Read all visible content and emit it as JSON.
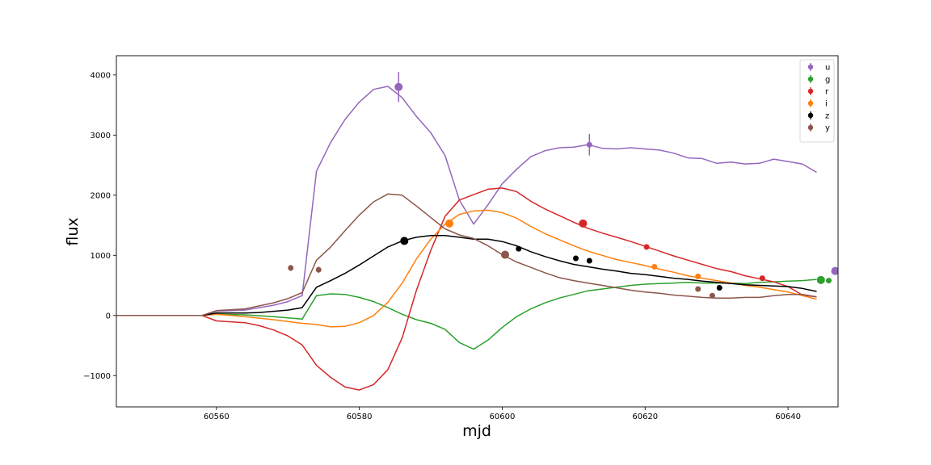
{
  "chart_data": {
    "type": "line",
    "xlabel": "mjd",
    "ylabel": "flux",
    "xlim": [
      60546,
      60647
    ],
    "ylim": [
      -1520,
      4320
    ],
    "x_ticks": [
      60560,
      60580,
      60600,
      60620,
      60640
    ],
    "x_tick_labels": [
      "60560",
      "60580",
      "60600",
      "60620",
      "60640"
    ],
    "y_ticks": [
      -1000,
      0,
      1000,
      2000,
      3000,
      4000
    ],
    "y_tick_labels": [
      "−1000",
      "0",
      "1000",
      "2000",
      "3000",
      "4000"
    ],
    "legend_position": "top-right",
    "series": [
      {
        "name": "u",
        "color": "#9467bd",
        "line": [
          [
            60546,
            0
          ],
          [
            60558,
            0
          ],
          [
            60560,
            70
          ],
          [
            60564,
            90
          ],
          [
            60568,
            170
          ],
          [
            60570,
            230
          ],
          [
            60572,
            330
          ],
          [
            60574,
            2400
          ],
          [
            60576,
            2880
          ],
          [
            60578,
            3260
          ],
          [
            60580,
            3550
          ],
          [
            60582,
            3760
          ],
          [
            60584,
            3810
          ],
          [
            60586,
            3620
          ],
          [
            60588,
            3310
          ],
          [
            60590,
            3040
          ],
          [
            60592,
            2660
          ],
          [
            60594,
            1920
          ],
          [
            60596,
            1520
          ],
          [
            60598,
            1840
          ],
          [
            60600,
            2190
          ],
          [
            60602,
            2430
          ],
          [
            60604,
            2640
          ],
          [
            60606,
            2740
          ],
          [
            60608,
            2790
          ],
          [
            60610,
            2800
          ],
          [
            60612,
            2840
          ],
          [
            60614,
            2780
          ],
          [
            60616,
            2770
          ],
          [
            60618,
            2790
          ],
          [
            60620,
            2770
          ],
          [
            60622,
            2750
          ],
          [
            60624,
            2700
          ],
          [
            60626,
            2620
          ],
          [
            60628,
            2610
          ],
          [
            60630,
            2530
          ],
          [
            60632,
            2550
          ],
          [
            60634,
            2520
          ],
          [
            60636,
            2530
          ],
          [
            60638,
            2600
          ],
          [
            60640,
            2560
          ],
          [
            60642,
            2520
          ],
          [
            60644,
            2380
          ]
        ],
        "points": [
          {
            "x": 60585.5,
            "y": 3800,
            "err": 250,
            "size": 10
          },
          {
            "x": 60612.2,
            "y": 2840,
            "err": 180,
            "size": 7
          },
          {
            "x": 60646.6,
            "y": 740,
            "err": 0,
            "size": 10
          }
        ]
      },
      {
        "name": "g",
        "color": "#2ca02c",
        "line": [
          [
            60546,
            0
          ],
          [
            60558,
            0
          ],
          [
            60560,
            20
          ],
          [
            60564,
            10
          ],
          [
            60568,
            -20
          ],
          [
            60570,
            -40
          ],
          [
            60572,
            -60
          ],
          [
            60574,
            330
          ],
          [
            60576,
            360
          ],
          [
            60578,
            350
          ],
          [
            60580,
            300
          ],
          [
            60582,
            230
          ],
          [
            60584,
            130
          ],
          [
            60586,
            20
          ],
          [
            60588,
            -70
          ],
          [
            60590,
            -130
          ],
          [
            60592,
            -230
          ],
          [
            60594,
            -450
          ],
          [
            60596,
            -560
          ],
          [
            60598,
            -410
          ],
          [
            60600,
            -200
          ],
          [
            60602,
            -20
          ],
          [
            60604,
            110
          ],
          [
            60606,
            210
          ],
          [
            60608,
            290
          ],
          [
            60610,
            350
          ],
          [
            60612,
            410
          ],
          [
            60614,
            440
          ],
          [
            60616,
            470
          ],
          [
            60618,
            500
          ],
          [
            60620,
            520
          ],
          [
            60622,
            530
          ],
          [
            60624,
            540
          ],
          [
            60626,
            550
          ],
          [
            60628,
            540
          ],
          [
            60630,
            540
          ],
          [
            60632,
            540
          ],
          [
            60634,
            530
          ],
          [
            60636,
            550
          ],
          [
            60638,
            560
          ],
          [
            60640,
            570
          ],
          [
            60642,
            580
          ],
          [
            60644,
            600
          ]
        ],
        "points": [
          {
            "x": 60644.6,
            "y": 590,
            "err": 0,
            "size": 10
          },
          {
            "x": 60645.7,
            "y": 580,
            "err": 0,
            "size": 7
          }
        ]
      },
      {
        "name": "r",
        "color": "#d62728",
        "line": [
          [
            60546,
            0
          ],
          [
            60558,
            0
          ],
          [
            60560,
            -90
          ],
          [
            60564,
            -120
          ],
          [
            60566,
            -170
          ],
          [
            60568,
            -240
          ],
          [
            60570,
            -340
          ],
          [
            60572,
            -490
          ],
          [
            60574,
            -830
          ],
          [
            60576,
            -1030
          ],
          [
            60578,
            -1190
          ],
          [
            60580,
            -1240
          ],
          [
            60582,
            -1150
          ],
          [
            60584,
            -900
          ],
          [
            60586,
            -370
          ],
          [
            60588,
            420
          ],
          [
            60590,
            1080
          ],
          [
            60592,
            1650
          ],
          [
            60594,
            1920
          ],
          [
            60596,
            2010
          ],
          [
            60598,
            2100
          ],
          [
            60600,
            2120
          ],
          [
            60602,
            2060
          ],
          [
            60604,
            1900
          ],
          [
            60606,
            1770
          ],
          [
            60608,
            1660
          ],
          [
            60610,
            1550
          ],
          [
            60612,
            1450
          ],
          [
            60614,
            1370
          ],
          [
            60616,
            1300
          ],
          [
            60618,
            1230
          ],
          [
            60620,
            1150
          ],
          [
            60622,
            1070
          ],
          [
            60624,
            990
          ],
          [
            60626,
            920
          ],
          [
            60628,
            850
          ],
          [
            60630,
            780
          ],
          [
            60632,
            730
          ],
          [
            60634,
            660
          ],
          [
            60636,
            610
          ],
          [
            60638,
            560
          ],
          [
            60640,
            480
          ],
          [
            60642,
            340
          ],
          [
            60644,
            310
          ]
        ],
        "points": [
          {
            "x": 60611.3,
            "y": 1530,
            "err": 0,
            "size": 10
          },
          {
            "x": 60620.2,
            "y": 1140,
            "err": 0,
            "size": 7
          },
          {
            "x": 60636.4,
            "y": 620,
            "err": 0,
            "size": 7
          }
        ]
      },
      {
        "name": "i",
        "color": "#ff7f0e",
        "line": [
          [
            60546,
            0
          ],
          [
            60558,
            0
          ],
          [
            60560,
            20
          ],
          [
            60564,
            -20
          ],
          [
            60568,
            -70
          ],
          [
            60570,
            -100
          ],
          [
            60572,
            -130
          ],
          [
            60574,
            -150
          ],
          [
            60576,
            -190
          ],
          [
            60578,
            -180
          ],
          [
            60580,
            -120
          ],
          [
            60582,
            0
          ],
          [
            60584,
            220
          ],
          [
            60586,
            540
          ],
          [
            60588,
            940
          ],
          [
            60590,
            1270
          ],
          [
            60592,
            1520
          ],
          [
            60594,
            1680
          ],
          [
            60596,
            1740
          ],
          [
            60598,
            1750
          ],
          [
            60600,
            1710
          ],
          [
            60602,
            1620
          ],
          [
            60604,
            1480
          ],
          [
            60606,
            1360
          ],
          [
            60608,
            1260
          ],
          [
            60610,
            1160
          ],
          [
            60612,
            1070
          ],
          [
            60614,
            1000
          ],
          [
            60616,
            930
          ],
          [
            60618,
            880
          ],
          [
            60620,
            830
          ],
          [
            60622,
            770
          ],
          [
            60624,
            720
          ],
          [
            60626,
            660
          ],
          [
            60628,
            620
          ],
          [
            60630,
            580
          ],
          [
            60632,
            540
          ],
          [
            60634,
            500
          ],
          [
            60636,
            470
          ],
          [
            60638,
            430
          ],
          [
            60640,
            390
          ],
          [
            60642,
            330
          ],
          [
            60644,
            270
          ]
        ],
        "points": [
          {
            "x": 60592.6,
            "y": 1530,
            "err": 0,
            "size": 10
          },
          {
            "x": 60621.3,
            "y": 810,
            "err": 0,
            "size": 7
          },
          {
            "x": 60627.4,
            "y": 650,
            "err": 0,
            "size": 7
          }
        ]
      },
      {
        "name": "z",
        "color": "#000000",
        "line": [
          [
            60546,
            0
          ],
          [
            60558,
            0
          ],
          [
            60560,
            40
          ],
          [
            60564,
            40
          ],
          [
            60566,
            50
          ],
          [
            60568,
            70
          ],
          [
            60570,
            90
          ],
          [
            60572,
            130
          ],
          [
            60574,
            470
          ],
          [
            60576,
            580
          ],
          [
            60578,
            700
          ],
          [
            60580,
            840
          ],
          [
            60582,
            990
          ],
          [
            60584,
            1140
          ],
          [
            60586,
            1240
          ],
          [
            60588,
            1300
          ],
          [
            60590,
            1330
          ],
          [
            60592,
            1330
          ],
          [
            60594,
            1300
          ],
          [
            60596,
            1270
          ],
          [
            60598,
            1270
          ],
          [
            60600,
            1230
          ],
          [
            60602,
            1160
          ],
          [
            60604,
            1060
          ],
          [
            60606,
            980
          ],
          [
            60608,
            910
          ],
          [
            60610,
            850
          ],
          [
            60612,
            810
          ],
          [
            60614,
            770
          ],
          [
            60616,
            740
          ],
          [
            60618,
            700
          ],
          [
            60620,
            680
          ],
          [
            60622,
            650
          ],
          [
            60624,
            620
          ],
          [
            60626,
            600
          ],
          [
            60628,
            570
          ],
          [
            60630,
            550
          ],
          [
            60632,
            530
          ],
          [
            60634,
            510
          ],
          [
            60636,
            500
          ],
          [
            60638,
            490
          ],
          [
            60640,
            480
          ],
          [
            60642,
            450
          ],
          [
            60644,
            400
          ]
        ],
        "points": [
          {
            "x": 60586.3,
            "y": 1240,
            "err": 0,
            "size": 10
          },
          {
            "x": 60602.3,
            "y": 1110,
            "err": 0,
            "size": 7
          },
          {
            "x": 60610.3,
            "y": 950,
            "err": 0,
            "size": 7
          },
          {
            "x": 60612.2,
            "y": 910,
            "err": 0,
            "size": 7
          },
          {
            "x": 60630.4,
            "y": 460,
            "err": 0,
            "size": 7
          }
        ]
      },
      {
        "name": "y",
        "color": "#8c564b",
        "line": [
          [
            60546,
            0
          ],
          [
            60558,
            0
          ],
          [
            60560,
            80
          ],
          [
            60564,
            110
          ],
          [
            60566,
            160
          ],
          [
            60568,
            210
          ],
          [
            60570,
            280
          ],
          [
            60572,
            380
          ],
          [
            60574,
            920
          ],
          [
            60576,
            1140
          ],
          [
            60578,
            1410
          ],
          [
            60580,
            1670
          ],
          [
            60582,
            1890
          ],
          [
            60584,
            2020
          ],
          [
            60586,
            2000
          ],
          [
            60588,
            1820
          ],
          [
            60590,
            1630
          ],
          [
            60592,
            1440
          ],
          [
            60594,
            1340
          ],
          [
            60596,
            1280
          ],
          [
            60598,
            1160
          ],
          [
            60600,
            1010
          ],
          [
            60602,
            890
          ],
          [
            60604,
            800
          ],
          [
            60606,
            710
          ],
          [
            60608,
            630
          ],
          [
            60610,
            580
          ],
          [
            60612,
            540
          ],
          [
            60614,
            500
          ],
          [
            60616,
            460
          ],
          [
            60618,
            420
          ],
          [
            60620,
            390
          ],
          [
            60622,
            370
          ],
          [
            60624,
            340
          ],
          [
            60626,
            320
          ],
          [
            60628,
            300
          ],
          [
            60630,
            290
          ],
          [
            60632,
            290
          ],
          [
            60634,
            300
          ],
          [
            60636,
            300
          ],
          [
            60638,
            330
          ],
          [
            60640,
            350
          ],
          [
            60642,
            350
          ],
          [
            60644,
            310
          ]
        ],
        "points": [
          {
            "x": 60570.4,
            "y": 790,
            "err": 50,
            "size": 7
          },
          {
            "x": 60574.3,
            "y": 760,
            "err": 50,
            "size": 7
          },
          {
            "x": 60600.4,
            "y": 1010,
            "err": 0,
            "size": 10
          },
          {
            "x": 60627.4,
            "y": 440,
            "err": 0,
            "size": 7
          },
          {
            "x": 60629.4,
            "y": 330,
            "err": 0,
            "size": 7
          }
        ]
      }
    ]
  }
}
